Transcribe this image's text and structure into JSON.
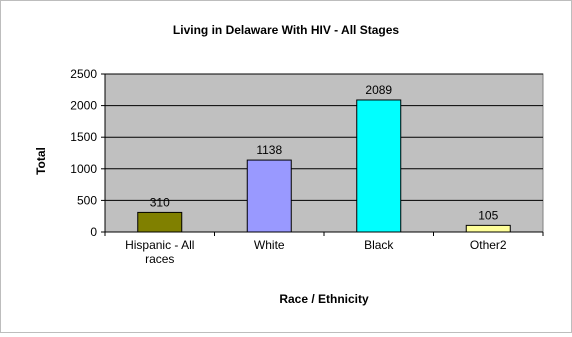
{
  "chart_data": {
    "type": "bar",
    "title": "Living in Delaware With HIV - All Stages",
    "xlabel": "Race / Ethnicity",
    "ylabel": "Total",
    "ylim": [
      0,
      2500
    ],
    "yticks": [
      0,
      500,
      1000,
      1500,
      2000,
      2500
    ],
    "grid": true,
    "legend": "none",
    "categories": [
      [
        "Hispanic - All",
        "races"
      ],
      [
        "White"
      ],
      [
        "Black"
      ],
      [
        "Other2"
      ]
    ],
    "values": [
      310,
      1138,
      2089,
      105
    ],
    "colors": [
      "#808000",
      "#9999ff",
      "#00ffff",
      "#ffff99"
    ],
    "plot_background": "#c0c0c0"
  }
}
